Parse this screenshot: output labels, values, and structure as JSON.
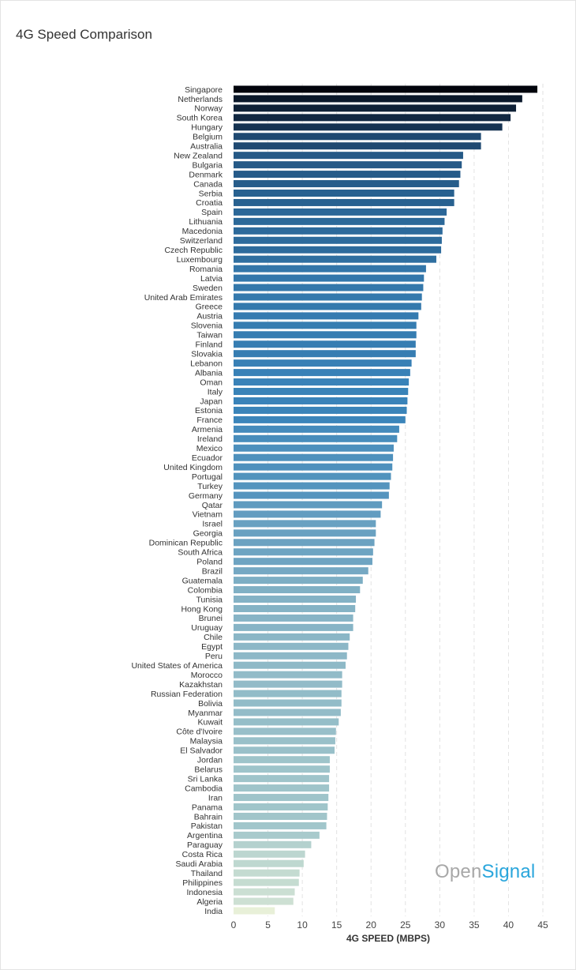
{
  "chart_data": {
    "type": "bar",
    "orientation": "horizontal",
    "title": "4G Speed Comparison",
    "xlabel": "4G SPEED (MBPS)",
    "ylabel": "",
    "xlim": [
      0,
      45
    ],
    "xticks": [
      0,
      5,
      10,
      15,
      20,
      25,
      30,
      35,
      40,
      45
    ],
    "grid": "vertical dashed",
    "color_stops": [
      "#e8f0d8",
      "#a9cbcc",
      "#7eaec4",
      "#3a84ba",
      "#2a6595",
      "#1a3d62",
      "#02040c"
    ],
    "categories": [
      "Singapore",
      "Netherlands",
      "Norway",
      "South Korea",
      "Hungary",
      "Belgium",
      "Australia",
      "New Zealand",
      "Bulgaria",
      "Denmark",
      "Canada",
      "Serbia",
      "Croatia",
      "Spain",
      "Lithuania",
      "Macedonia",
      "Switzerland",
      "Czech Republic",
      "Luxembourg",
      "Romania",
      "Latvia",
      "Sweden",
      "United Arab Emirates",
      "Greece",
      "Austria",
      "Slovenia",
      "Taiwan",
      "Finland",
      "Slovakia",
      "Lebanon",
      "Albania",
      "Oman",
      "Italy",
      "Japan",
      "Estonia",
      "France",
      "Armenia",
      "Ireland",
      "Mexico",
      "Ecuador",
      "United Kingdom",
      "Portugal",
      "Turkey",
      "Germany",
      "Qatar",
      "Vietnam",
      "Israel",
      "Georgia",
      "Dominican Republic",
      "South Africa",
      "Poland",
      "Brazil",
      "Guatemala",
      "Colombia",
      "Tunisia",
      "Hong Kong",
      "Brunei",
      "Uruguay",
      "Chile",
      "Egypt",
      "Peru",
      "United States of America",
      "Morocco",
      "Kazakhstan",
      "Russian Federation",
      "Bolivia",
      "Myanmar",
      "Kuwait",
      "Côte d'Ivoire",
      "Malaysia",
      "El Salvador",
      "Jordan",
      "Belarus",
      "Sri Lanka",
      "Cambodia",
      "Iran",
      "Panama",
      "Bahrain",
      "Pakistan",
      "Argentina",
      "Paraguay",
      "Costa Rica",
      "Saudi Arabia",
      "Thailand",
      "Philippines",
      "Indonesia",
      "Algeria",
      "India"
    ],
    "values": [
      44.2,
      42.0,
      41.1,
      40.3,
      39.1,
      36.0,
      36.0,
      33.4,
      33.2,
      33.0,
      32.8,
      32.1,
      32.1,
      31.0,
      30.7,
      30.4,
      30.3,
      30.2,
      29.5,
      28.0,
      27.7,
      27.6,
      27.4,
      27.3,
      26.9,
      26.6,
      26.6,
      26.5,
      26.5,
      25.9,
      25.7,
      25.5,
      25.4,
      25.3,
      25.2,
      25.0,
      24.1,
      23.8,
      23.3,
      23.2,
      23.1,
      22.9,
      22.7,
      22.6,
      21.6,
      21.4,
      20.7,
      20.7,
      20.5,
      20.3,
      20.2,
      19.6,
      18.8,
      18.4,
      17.8,
      17.7,
      17.4,
      17.4,
      16.9,
      16.7,
      16.5,
      16.3,
      15.8,
      15.8,
      15.7,
      15.7,
      15.6,
      15.3,
      14.9,
      14.8,
      14.7,
      14.0,
      14.0,
      13.9,
      13.9,
      13.8,
      13.7,
      13.6,
      13.5,
      12.5,
      11.3,
      10.4,
      10.2,
      9.6,
      9.5,
      8.9,
      8.7,
      6.0
    ]
  },
  "logo": {
    "part1": "Open",
    "part2": "Signal"
  }
}
